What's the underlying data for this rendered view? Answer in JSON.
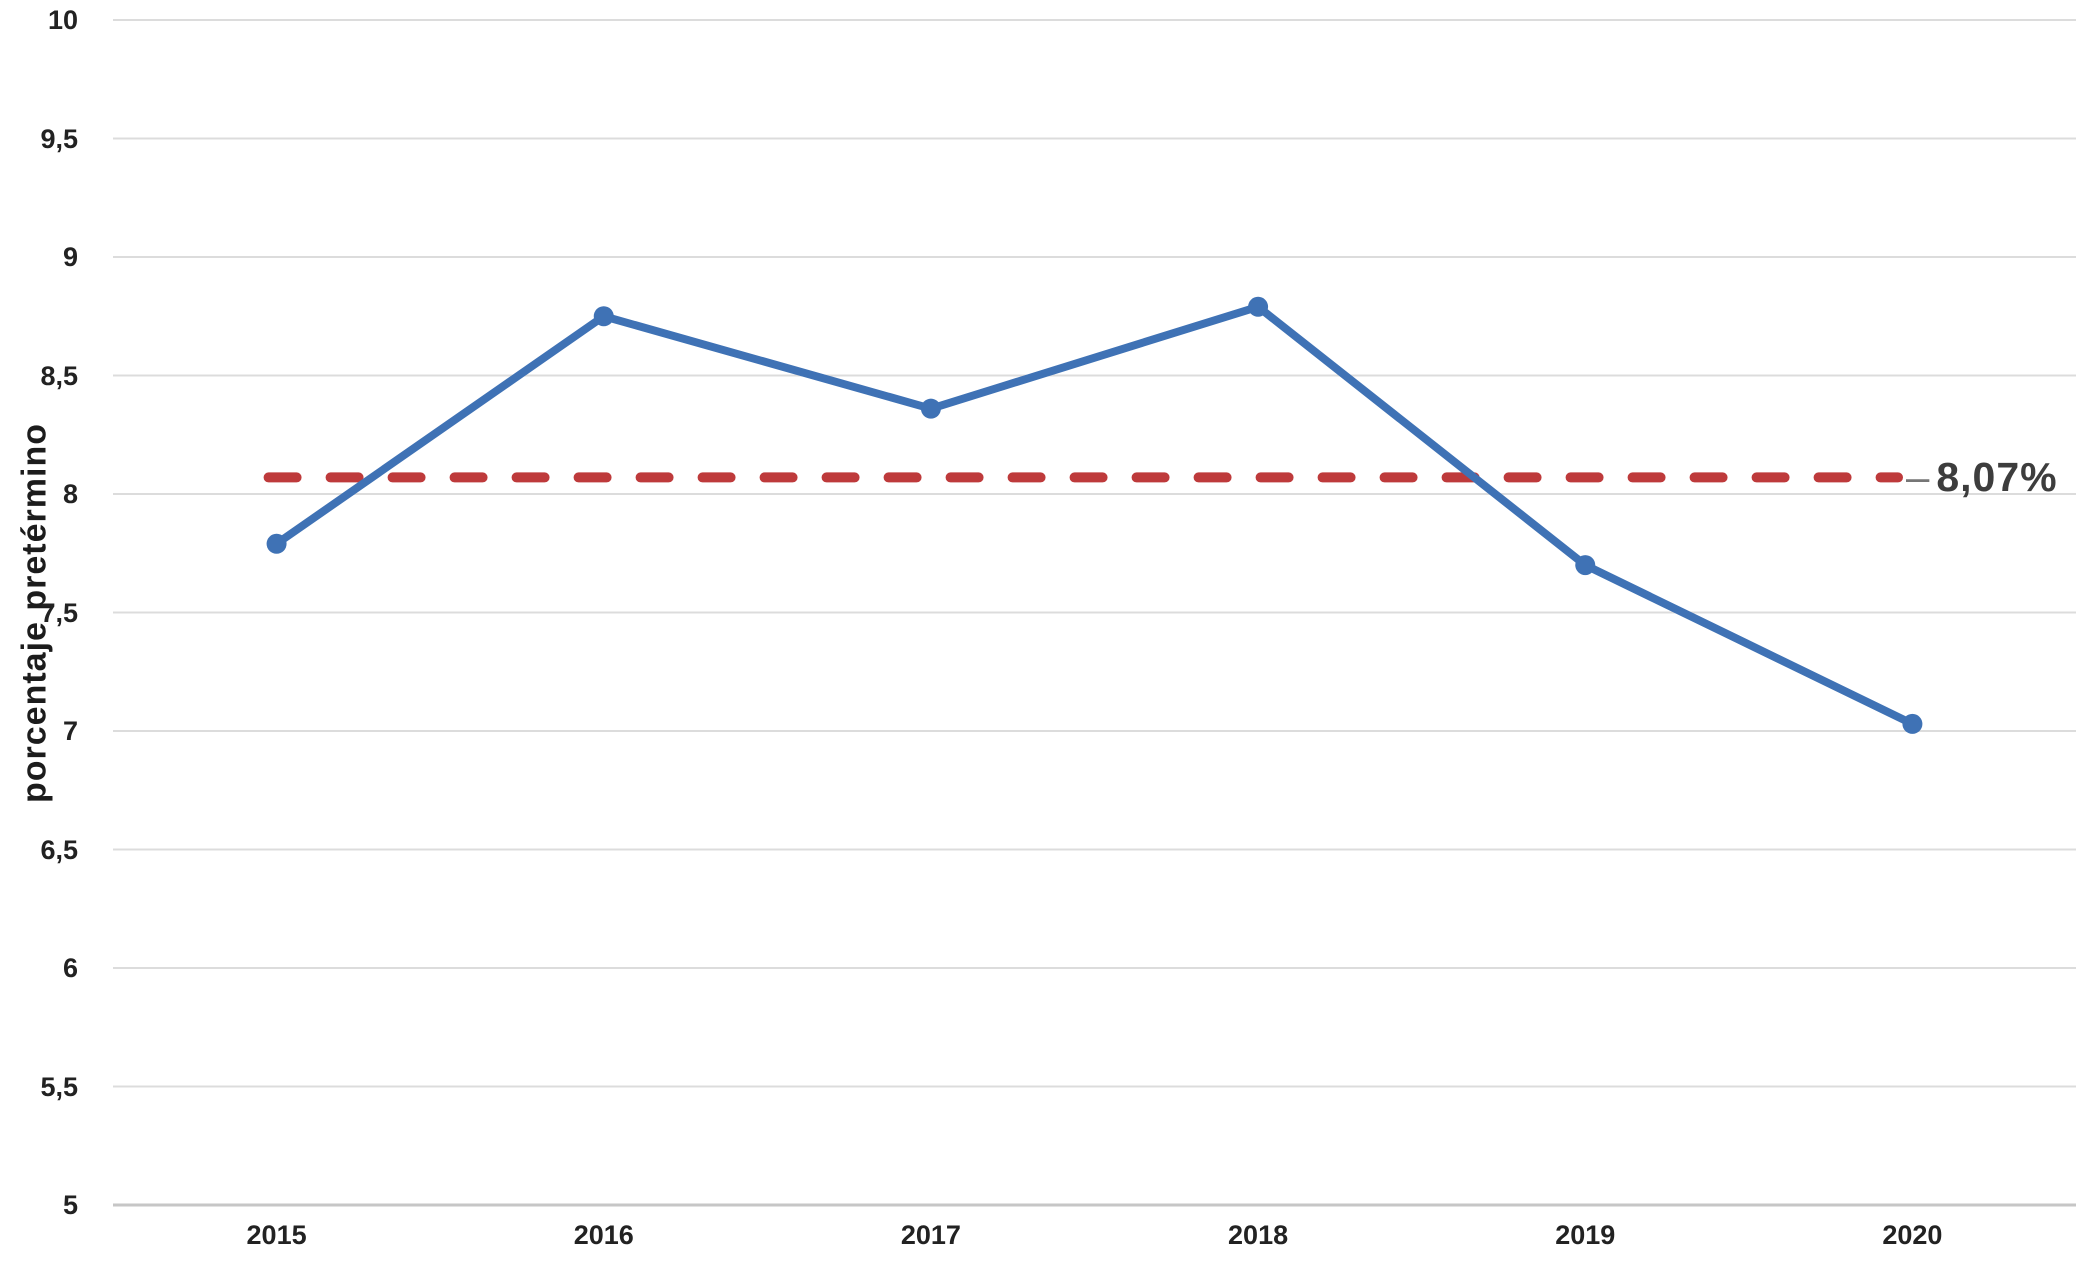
{
  "chart_data": {
    "type": "line",
    "title": "",
    "xlabel": "",
    "ylabel": "porcentaje pretérmino",
    "categories": [
      "2015",
      "2016",
      "2017",
      "2018",
      "2019",
      "2020"
    ],
    "series": [
      {
        "name": "porcentaje pretérmino",
        "values": [
          7.79,
          8.75,
          8.36,
          8.79,
          7.7,
          7.03
        ],
        "color": "#3F72B5"
      }
    ],
    "reference_line": {
      "value": 8.07,
      "dash_prefix": "–",
      "label": "8,07%",
      "color": "#BE3A3B"
    },
    "ylim": [
      5,
      10
    ],
    "ytick_step": 0.5,
    "yticks": [
      "10",
      "9,5",
      "9",
      "8,5",
      "8",
      "7,5",
      "7",
      "6,5",
      "6",
      "5,5",
      "5"
    ],
    "grid": true,
    "legend": "none",
    "colors": {
      "gridline": "#dcdcdc",
      "axis": "#c6c6c6",
      "tick_text": "#222222",
      "ref_label_text": "#3d3d3d"
    }
  }
}
